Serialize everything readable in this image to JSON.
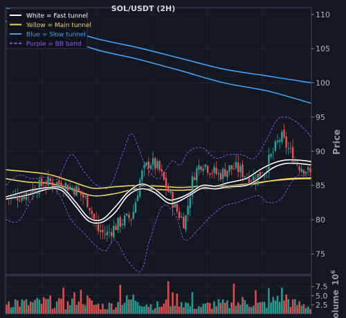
{
  "chart_data": {
    "type": "candlestick",
    "title": "SOL/USDT (2H)",
    "ylabel": "Price",
    "volume_ylabel": "Volume",
    "volume_exponent": "10",
    "volume_exponent_power": "6",
    "ylim": [
      72,
      111
    ],
    "yticks": [
      75,
      80,
      85,
      90,
      95,
      100,
      105,
      110
    ],
    "volume_ylim": [
      0,
      10.5
    ],
    "volume_yticks": [
      {
        "value": 2.5,
        "label": "2.5"
      },
      {
        "value": 5.0,
        "label": "5.0"
      },
      {
        "value": 7.5,
        "label": "7.5"
      }
    ],
    "grid": true,
    "legend_position": "top-left",
    "legend": [
      {
        "label": "White = Fast tunnel",
        "color": "#ffffff",
        "style": "solid"
      },
      {
        "label": "Yellow = Main tunnel",
        "color": "#f5d25a",
        "style": "solid"
      },
      {
        "label": "Blue = Slow tunnel",
        "color": "#3fa4f5",
        "style": "solid"
      },
      {
        "label": "Purple = BB band",
        "color": "#8a5cf5",
        "style": "dashed"
      }
    ],
    "colors": {
      "up": "#26a69a",
      "down": "#ef5350",
      "background": "#131722",
      "grid": "#2a2e39",
      "text": "#b2b5be"
    },
    "x_range": [
      0,
      140
    ],
    "close_path": [
      [
        0,
        83.2
      ],
      [
        8,
        83.6
      ],
      [
        14,
        84.7
      ],
      [
        20,
        85.5
      ],
      [
        26,
        85.2
      ],
      [
        32,
        84.5
      ],
      [
        38,
        82.5
      ],
      [
        42,
        78.5
      ],
      [
        46,
        77.8
      ],
      [
        52,
        79.5
      ],
      [
        58,
        80.5
      ],
      [
        62,
        86.5
      ],
      [
        66,
        88.5
      ],
      [
        70,
        87.5
      ],
      [
        74,
        84.5
      ],
      [
        78,
        81.5
      ],
      [
        82,
        79.5
      ],
      [
        86,
        86.5
      ],
      [
        90,
        88.5
      ],
      [
        94,
        87.2
      ],
      [
        98,
        86.5
      ],
      [
        102,
        87.5
      ],
      [
        106,
        87.5
      ],
      [
        110,
        86.5
      ],
      [
        114,
        86.0
      ],
      [
        118,
        87.0
      ],
      [
        122,
        89.5
      ],
      [
        126,
        92.2
      ],
      [
        130,
        90.0
      ],
      [
        134,
        88.0
      ],
      [
        137,
        87.5
      ],
      [
        140,
        86.5
      ]
    ],
    "fast_tunnel": [
      [
        [
          0,
          83.0
        ],
        [
          10,
          83.6
        ],
        [
          20,
          84.5
        ],
        [
          26,
          84.2
        ],
        [
          32,
          82.0
        ],
        [
          38,
          79.8
        ],
        [
          44,
          79.6
        ],
        [
          50,
          81.0
        ],
        [
          56,
          83.5
        ],
        [
          62,
          84.5
        ],
        [
          68,
          84.0
        ],
        [
          74,
          82.5
        ],
        [
          78,
          82.5
        ],
        [
          84,
          83.5
        ],
        [
          90,
          84.6
        ],
        [
          96,
          84.5
        ],
        [
          102,
          84.8
        ],
        [
          110,
          85.0
        ],
        [
          116,
          86.0
        ],
        [
          122,
          87.5
        ],
        [
          128,
          88.2
        ],
        [
          134,
          88.2
        ],
        [
          140,
          88.0
        ]
      ],
      [
        [
          0,
          83.3
        ],
        [
          10,
          84.2
        ],
        [
          20,
          84.7
        ],
        [
          26,
          84.6
        ],
        [
          32,
          82.6
        ],
        [
          38,
          80.3
        ],
        [
          44,
          80.0
        ],
        [
          50,
          81.8
        ],
        [
          56,
          84.0
        ],
        [
          62,
          85.2
        ],
        [
          68,
          84.5
        ],
        [
          74,
          83.0
        ],
        [
          78,
          83.0
        ],
        [
          84,
          83.8
        ],
        [
          90,
          85.0
        ],
        [
          96,
          84.9
        ],
        [
          102,
          85.4
        ],
        [
          110,
          86.0
        ],
        [
          116,
          87.2
        ],
        [
          122,
          88.2
        ],
        [
          128,
          88.7
        ],
        [
          134,
          88.7
        ],
        [
          140,
          88.5
        ]
      ]
    ],
    "main_tunnel": [
      [
        [
          0,
          86.0
        ],
        [
          10,
          85.5
        ],
        [
          20,
          85.3
        ],
        [
          30,
          84.5
        ],
        [
          40,
          83.5
        ],
        [
          50,
          83.8
        ],
        [
          60,
          84.5
        ],
        [
          70,
          84.4
        ],
        [
          80,
          84.3
        ],
        [
          90,
          84.5
        ],
        [
          100,
          84.6
        ],
        [
          110,
          85.0
        ],
        [
          120,
          85.6
        ],
        [
          130,
          86.0
        ],
        [
          140,
          86.1
        ]
      ],
      [
        [
          0,
          87.3
        ],
        [
          10,
          87.0
        ],
        [
          20,
          86.6
        ],
        [
          30,
          85.6
        ],
        [
          40,
          84.6
        ],
        [
          50,
          84.8
        ],
        [
          60,
          85.0
        ],
        [
          70,
          84.9
        ],
        [
          80,
          84.7
        ],
        [
          90,
          84.9
        ],
        [
          100,
          84.9
        ],
        [
          110,
          85.2
        ],
        [
          120,
          85.6
        ],
        [
          130,
          85.9
        ],
        [
          140,
          86.0
        ]
      ]
    ],
    "slow_tunnel": [
      [
        [
          0,
          109.0
        ],
        [
          20,
          107.5
        ],
        [
          40,
          105.0
        ],
        [
          60,
          103.5
        ],
        [
          80,
          101.8
        ],
        [
          100,
          100.0
        ],
        [
          120,
          98.8
        ],
        [
          140,
          97.0
        ]
      ],
      [
        [
          0,
          111.0
        ],
        [
          20,
          108.8
        ],
        [
          40,
          106.6
        ],
        [
          60,
          105.2
        ],
        [
          80,
          103.6
        ],
        [
          100,
          102.0
        ],
        [
          120,
          101.0
        ],
        [
          140,
          100.0
        ]
      ]
    ],
    "bb_band": [
      [
        [
          0,
          80.0
        ],
        [
          6,
          79.8
        ],
        [
          12,
          83.0
        ],
        [
          18,
          85.5
        ],
        [
          24,
          84.0
        ],
        [
          30,
          80.0
        ],
        [
          36,
          78.0
        ],
        [
          42,
          76.0
        ],
        [
          46,
          75.5
        ],
        [
          50,
          77.0
        ],
        [
          56,
          74.0
        ],
        [
          62,
          72.5
        ],
        [
          66,
          77.0
        ],
        [
          72,
          82.0
        ],
        [
          78,
          80.5
        ],
        [
          82,
          77.0
        ],
        [
          88,
          78.5
        ],
        [
          94,
          80.5
        ],
        [
          100,
          82.0
        ],
        [
          106,
          82.5
        ],
        [
          110,
          83.0
        ],
        [
          116,
          83.5
        ],
        [
          120,
          82.5
        ],
        [
          126,
          83.0
        ],
        [
          132,
          86.0
        ],
        [
          136,
          86.5
        ],
        [
          140,
          86.5
        ]
      ],
      [
        [
          0,
          85.0
        ],
        [
          6,
          86.5
        ],
        [
          12,
          86.0
        ],
        [
          18,
          86.2
        ],
        [
          24,
          86.0
        ],
        [
          30,
          89.5
        ],
        [
          36,
          87.0
        ],
        [
          42,
          85.0
        ],
        [
          48,
          85.0
        ],
        [
          54,
          90.0
        ],
        [
          58,
          92.5
        ],
        [
          64,
          88.0
        ],
        [
          70,
          86.0
        ],
        [
          76,
          88.5
        ],
        [
          80,
          88.0
        ],
        [
          84,
          90.0
        ],
        [
          90,
          90.5
        ],
        [
          96,
          89.0
        ],
        [
          102,
          89.5
        ],
        [
          108,
          89.5
        ],
        [
          114,
          89.0
        ],
        [
          120,
          92.0
        ],
        [
          124,
          94.5
        ],
        [
          128,
          95.0
        ],
        [
          132,
          94.5
        ],
        [
          136,
          93.5
        ],
        [
          140,
          92.0
        ]
      ]
    ],
    "volume_profile": [
      [
        0,
        4.5
      ],
      [
        10,
        3.5
      ],
      [
        20,
        4.2
      ],
      [
        28,
        3.0
      ],
      [
        34,
        6.5
      ],
      [
        40,
        3.2
      ],
      [
        46,
        2.6
      ],
      [
        54,
        4.0
      ],
      [
        60,
        5.5
      ],
      [
        66,
        3.0
      ],
      [
        72,
        2.8
      ],
      [
        78,
        5.5
      ],
      [
        84,
        3.0
      ],
      [
        90,
        2.5
      ],
      [
        96,
        3.5
      ],
      [
        104,
        3.0
      ],
      [
        110,
        4.5
      ],
      [
        116,
        3.0
      ],
      [
        122,
        4.0
      ],
      [
        126,
        6.8
      ],
      [
        132,
        3.5
      ],
      [
        140,
        2.5
      ]
    ],
    "volume_spikes": [
      [
        4,
        4.0
      ],
      [
        26,
        7.2
      ],
      [
        52,
        8.0
      ],
      [
        74,
        9.0
      ],
      [
        78,
        5.6
      ],
      [
        85,
        6.0
      ],
      [
        104,
        8.3
      ],
      [
        114,
        6.5
      ],
      [
        120,
        7.1
      ]
    ]
  }
}
